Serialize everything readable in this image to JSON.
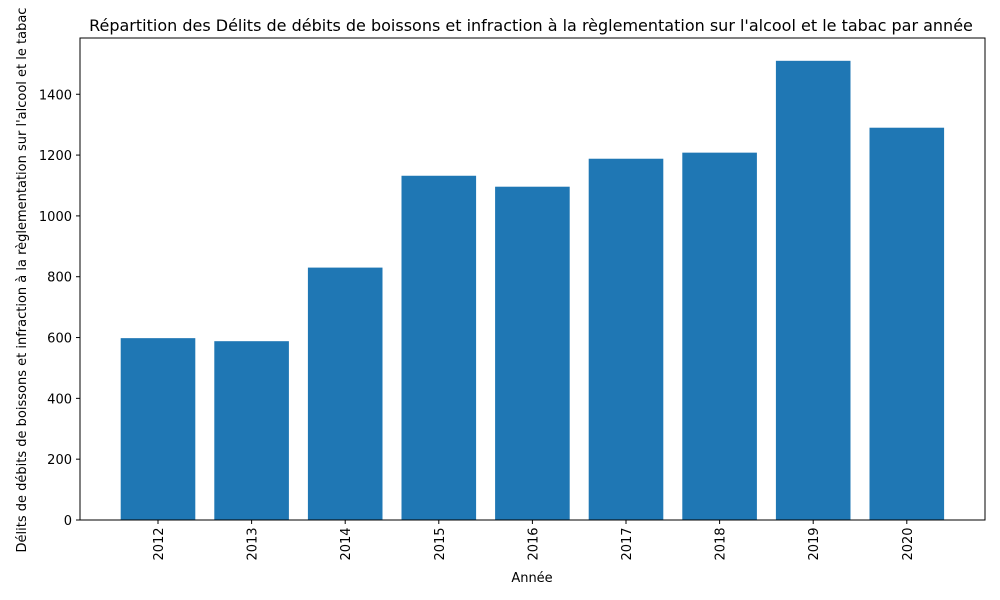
{
  "chart_data": {
    "type": "bar",
    "title": "Répartition des Délits de débits de boissons et infraction à la règlementation sur l'alcool  et le tabac par année",
    "xlabel": "Année",
    "ylabel": "Délits de débits de boissons et infraction à la règlementation sur l'alcool  et le tabac",
    "categories": [
      "2012",
      "2013",
      "2014",
      "2015",
      "2016",
      "2017",
      "2018",
      "2019",
      "2020"
    ],
    "values": [
      598,
      588,
      830,
      1132,
      1096,
      1188,
      1208,
      1510,
      1290
    ],
    "ylim": [
      0,
      1585
    ],
    "yticks": [
      0,
      200,
      400,
      600,
      800,
      1000,
      1200,
      1400
    ],
    "bar_color": "#1f77b4",
    "grid": false,
    "legend": "none"
  }
}
